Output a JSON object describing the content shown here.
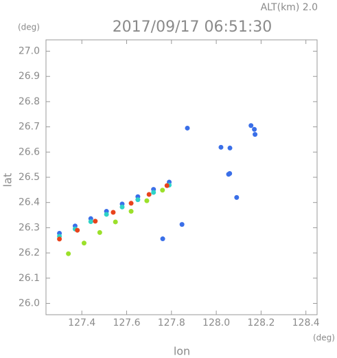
{
  "chart_data": {
    "type": "scatter",
    "title": "2017/09/17 06:51:30",
    "subtitle": "ALT(km) 2.0",
    "x_label": "lon",
    "y_label": "lat",
    "x_unit": "(deg)",
    "y_unit": "(deg)",
    "xlim": [
      127.24,
      128.45
    ],
    "ylim": [
      25.955,
      27.045
    ],
    "xticks": [
      127.4,
      127.6,
      127.8,
      {
        "value": 128.0,
        "label": "128.0"
      },
      128.2,
      128.4
    ],
    "yticks": [
      {
        "value": 26.0,
        "label": "26.0"
      },
      26.1,
      26.2,
      26.3,
      26.4,
      26.5,
      26.6,
      26.7,
      26.8,
      26.9,
      {
        "value": 27.0,
        "label": "27.0"
      }
    ],
    "series": [
      {
        "color": "#3a6fe8",
        "x": [
          127.3,
          127.37,
          127.44,
          127.51,
          127.58,
          127.65,
          127.72,
          127.79,
          128.155,
          128.17,
          128.173,
          128.021,
          128.055,
          128.06,
          127.847,
          127.761,
          128.091,
          127.871,
          128.061
        ],
        "values": [
          26.278,
          26.307,
          26.336,
          26.365,
          26.394,
          26.423,
          26.452,
          26.481,
          26.705,
          26.69,
          26.67,
          26.619,
          26.512,
          26.515,
          26.313,
          26.256,
          26.42,
          26.695,
          26.616
        ]
      },
      {
        "color": "#2fd3c8",
        "x": [
          127.3,
          127.37,
          127.44,
          127.51,
          127.58,
          127.65,
          127.72,
          127.79
        ],
        "values": [
          26.266,
          26.295,
          26.324,
          26.353,
          26.382,
          26.411,
          26.44,
          26.469
        ]
      },
      {
        "color": "#9be02a",
        "x": [
          127.34,
          127.41,
          127.48,
          127.55,
          127.62,
          127.69,
          127.76
        ],
        "values": [
          26.197,
          26.239,
          26.281,
          26.323,
          26.365,
          26.407,
          26.449
        ]
      },
      {
        "color": "#e8431c",
        "x": [
          127.3,
          127.38,
          127.46,
          127.54,
          127.62,
          127.7,
          127.78
        ],
        "values": [
          26.255,
          26.29,
          26.326,
          26.361,
          26.397,
          26.432,
          26.467
        ]
      }
    ]
  }
}
